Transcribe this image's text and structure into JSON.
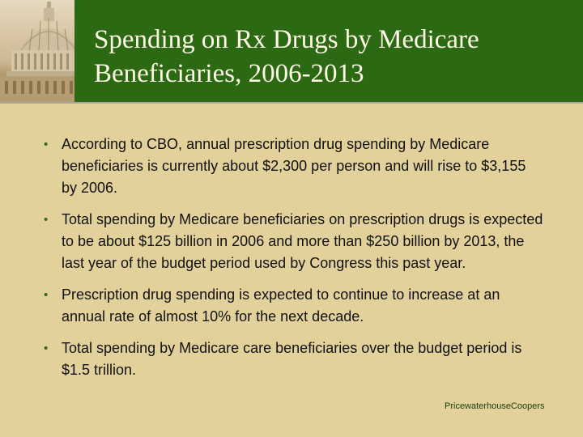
{
  "slide": {
    "title_lines": [
      "Spending on Rx Drugs by Medicare",
      "Beneficiaries, 2006-2013"
    ],
    "header_image": "capitol-dome-image",
    "bullets": [
      "According to CBO, annual prescription drug spending by Medicare beneficiaries is currently about $2,300 per person and will rise to $3,155 by 2006.",
      "Total spending by Medicare beneficiaries on prescription drugs is expected to be about $125 billion in 2006 and more than $250 billion by 2013, the last year of the budget period used by Congress this past year.",
      "Prescription drug spending is expected to continue to increase at an annual rate of almost 10% for the next decade.",
      "Total spending by Medicare care beneficiaries over the budget period is $1.5 trillion."
    ],
    "footer_brand": "PricewaterhouseCoopers"
  },
  "colors": {
    "header_green": "#2b6a12",
    "background": "#e3d19c",
    "title_text": "#fffbe8",
    "body_text": "#111111"
  }
}
